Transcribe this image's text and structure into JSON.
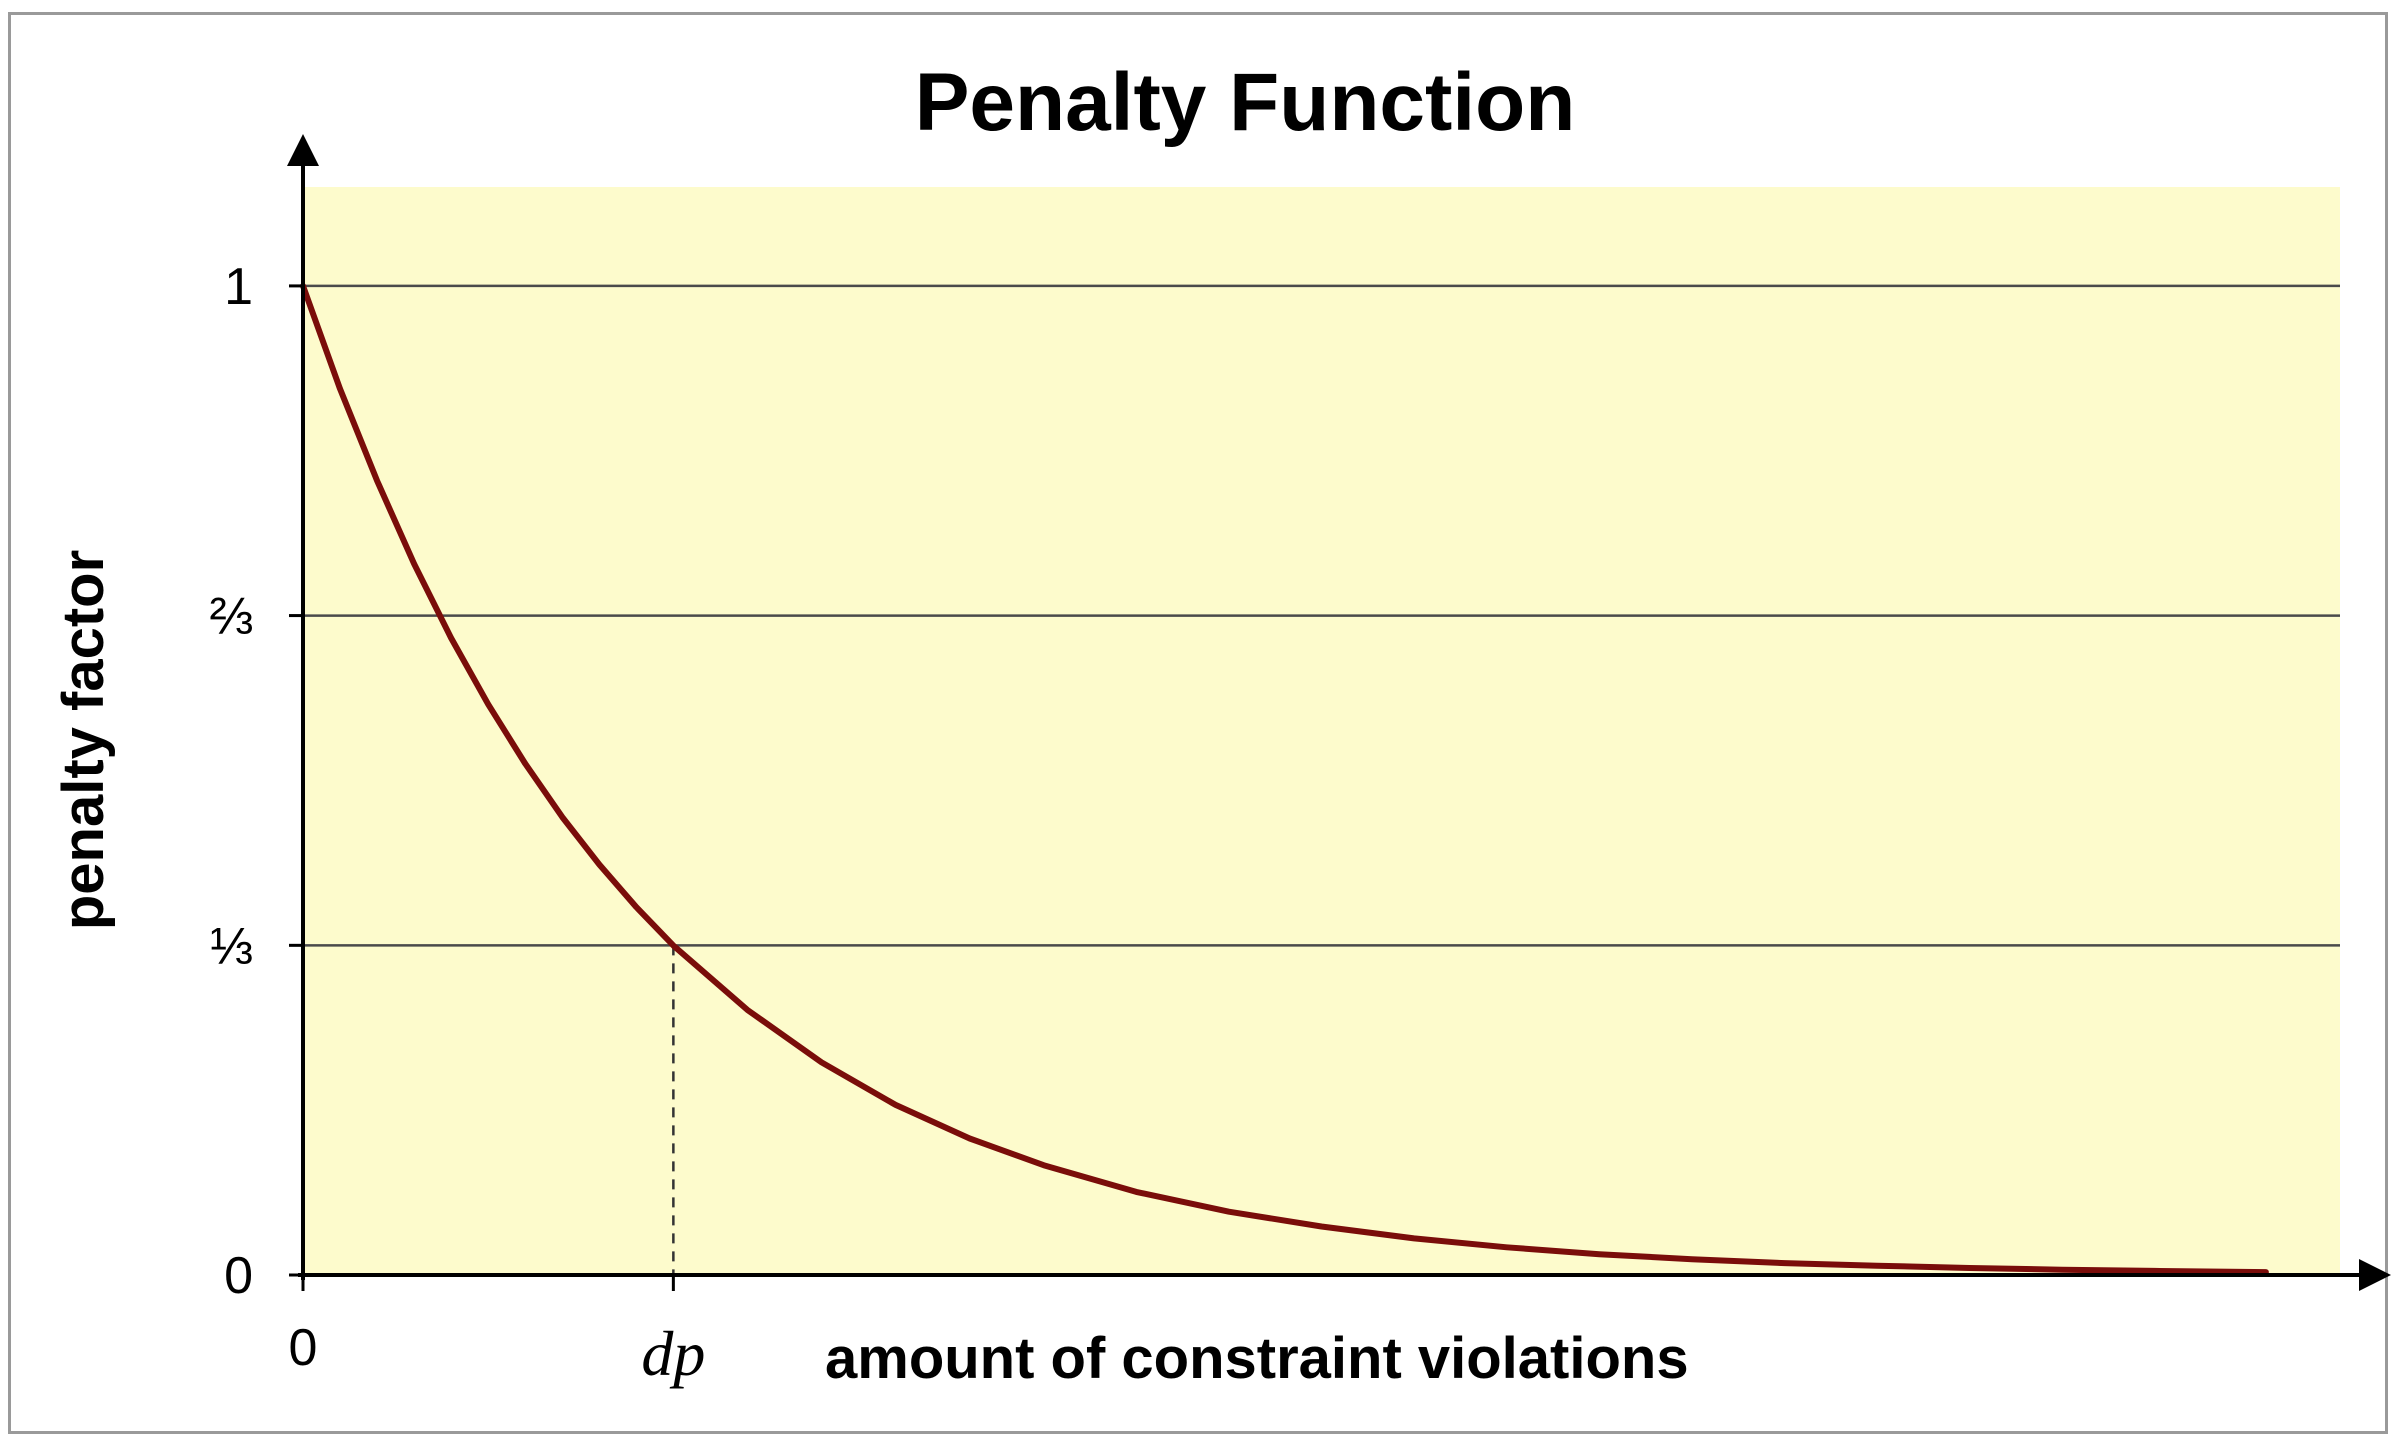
{
  "chart_data": {
    "type": "line",
    "title": "Penalty Function",
    "xlabel": "amount of constraint violations",
    "ylabel": "penalty factor",
    "ylim": [
      0,
      1.1
    ],
    "xlim": [
      0,
      5.5
    ],
    "y_ticks": [
      {
        "value": 0,
        "label": "0"
      },
      {
        "value": 0.3333,
        "label": "⅓"
      },
      {
        "value": 0.6667,
        "label": "⅔"
      },
      {
        "value": 1,
        "label": "1"
      }
    ],
    "x_ticks": [
      {
        "value": 0,
        "label": "0"
      },
      {
        "value": 1,
        "label": "dp"
      }
    ],
    "grid": "horizontal",
    "plot_background": "#fdfbcc",
    "line_color": "#7a0d0a",
    "series": [
      {
        "x": [
          0,
          0.1,
          0.2,
          0.3,
          0.4,
          0.5,
          0.6,
          0.7,
          0.8,
          0.9,
          1.0,
          1.2,
          1.4,
          1.6,
          1.8,
          2.0,
          2.25,
          2.5,
          2.75,
          3.0,
          3.25,
          3.5,
          3.75,
          4.0,
          4.25,
          4.5,
          4.75,
          5.0,
          5.3
        ],
        "values": [
          1.0,
          0.896,
          0.803,
          0.719,
          0.644,
          0.577,
          0.517,
          0.463,
          0.415,
          0.372,
          0.333,
          0.268,
          0.215,
          0.172,
          0.138,
          0.111,
          0.084,
          0.064,
          0.049,
          0.037,
          0.028,
          0.021,
          0.016,
          0.012,
          0.0094,
          0.0071,
          0.0054,
          0.0041,
          0.0029
        ]
      }
    ],
    "annotations": [
      {
        "type": "dashed-drop-line",
        "x": 1.0,
        "y": 0.3333
      }
    ]
  }
}
